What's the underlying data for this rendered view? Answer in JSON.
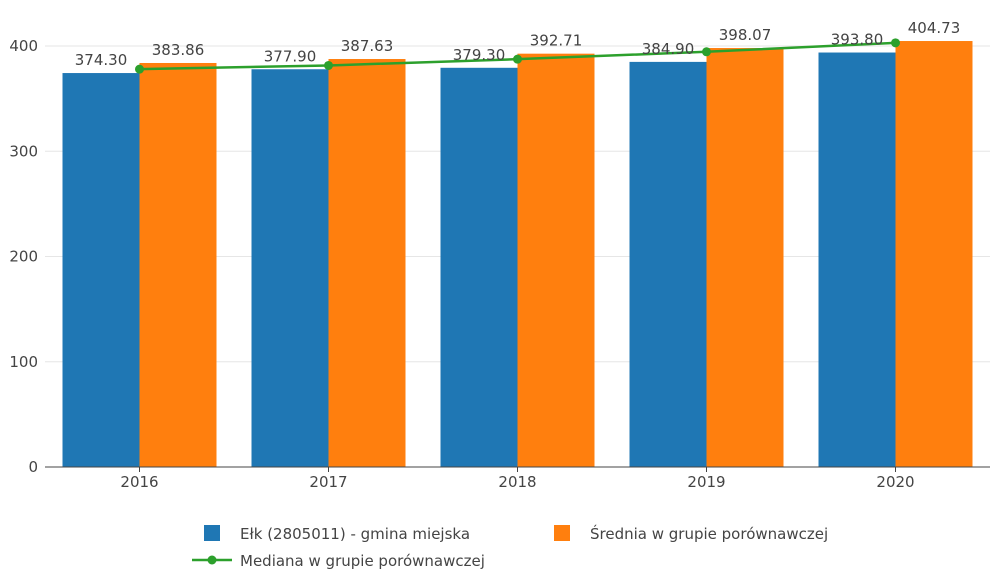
{
  "chart_data": {
    "type": "bar",
    "categories": [
      "2016",
      "2017",
      "2018",
      "2019",
      "2020"
    ],
    "series": [
      {
        "name": "Ełk (2805011) - gmina miejska",
        "type": "bar",
        "color": "#1f77b4",
        "values": [
          374.3,
          377.9,
          379.3,
          384.9,
          393.8
        ],
        "labels": [
          "374.30",
          "377.90",
          "379.30",
          "384.90",
          "393.80"
        ]
      },
      {
        "name": "Średnia w grupie porównawczej",
        "type": "bar",
        "color": "#ff7f0e",
        "values": [
          383.86,
          387.63,
          392.71,
          398.07,
          404.73
        ],
        "labels": [
          "383.86",
          "387.63",
          "392.71",
          "398.07",
          "404.73"
        ]
      },
      {
        "name": "Mediana w grupie porównawczej",
        "type": "line",
        "color": "#2ca02c",
        "values": [
          378.0,
          381.5,
          387.5,
          394.5,
          403.0
        ]
      }
    ],
    "yticks": [
      "0",
      "100",
      "200",
      "300",
      "400"
    ],
    "ylim": [
      0,
      420
    ],
    "grid": true,
    "legend_position": "bottom"
  }
}
